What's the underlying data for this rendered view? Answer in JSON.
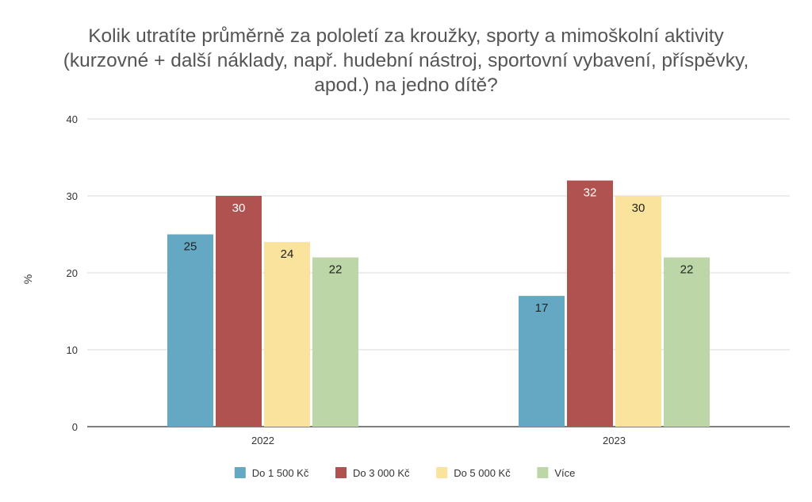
{
  "chart_data": {
    "type": "bar",
    "title_lines": [
      "Kolik utratíte průměrně za pololetí za kroužky, sporty a mimoškolní aktivity",
      "(kurzovné + další náklady, např. hudební nástroj, sportovní vybavení, příspěvky,",
      "apod.) na jedno dítě?"
    ],
    "xlabel": "",
    "ylabel": "%",
    "ylim": [
      0,
      40
    ],
    "yticks": [
      "0",
      "10",
      "20",
      "30",
      "40"
    ],
    "grid": true,
    "legend_position": "bottom",
    "categories": [
      "2022",
      "2023"
    ],
    "series": [
      {
        "name": "Do 1 500 Kč",
        "color": "#64a8c4",
        "label_color": "#222222",
        "values": [
          25,
          17
        ]
      },
      {
        "name": "Do 3 000 Kč",
        "color": "#b05350",
        "label_color": "#ffffff",
        "values": [
          30,
          32
        ]
      },
      {
        "name": "Do 5 000 Kč",
        "color": "#fae39c",
        "label_color": "#222222",
        "values": [
          24,
          30
        ]
      },
      {
        "name": "Více",
        "color": "#bcd6a7",
        "label_color": "#222222",
        "values": [
          22,
          22
        ]
      }
    ]
  }
}
